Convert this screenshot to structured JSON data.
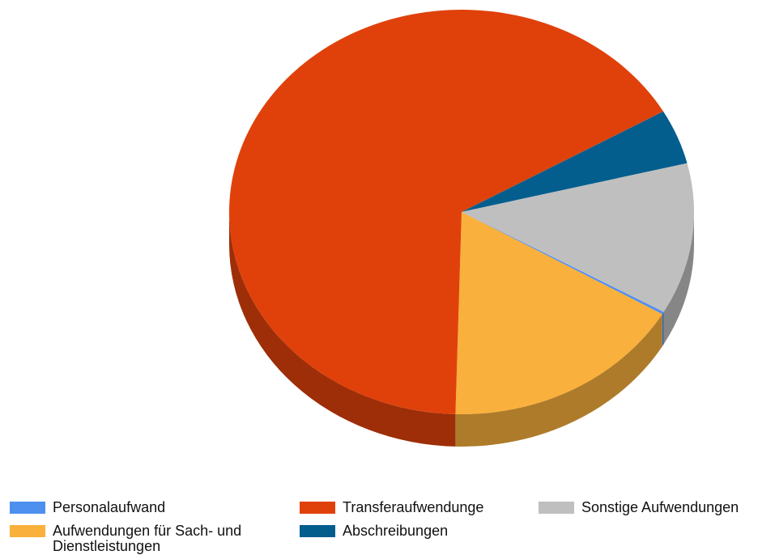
{
  "chart_data": {
    "type": "pie",
    "categories": [
      "Personalaufwand",
      "Aufwendungen für Sach- und Dienstleistungen",
      "Transferaufwendunge",
      "Abschreibungen",
      "Sonstige Aufwendungen"
    ],
    "values": [
      0.2,
      17.0,
      66.3,
      4.4,
      12.1
    ],
    "colors": [
      "#4d90f0",
      "#f9b03c",
      "#e0410b",
      "#035e8e",
      "#bfbfbf"
    ],
    "legend": "bottom"
  }
}
